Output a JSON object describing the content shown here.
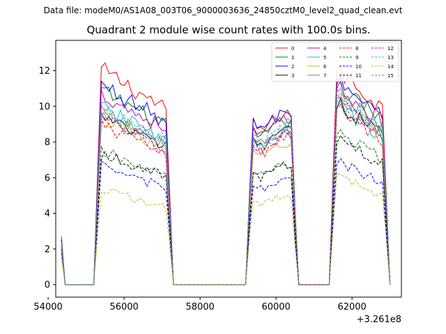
{
  "suptitle": "Data file: modeM0/AS1A08_003T06_9000003636_24850cztM0_level2_quad_clean.evt",
  "chart_data": {
    "type": "line",
    "title": "Quadrant 2 module wise count rates with 100.0s bins.",
    "xlabel": "",
    "ylabel": "",
    "x_offset_label": "+3.261e8",
    "xlim": [
      54200,
      63300
    ],
    "ylim": [
      -0.7,
      13.7
    ],
    "xticks": [
      54000,
      56000,
      58000,
      60000,
      62000
    ],
    "xtick_labels": [
      "54000",
      "56000",
      "58000",
      "60000",
      "62000"
    ],
    "yticks": [
      0,
      2,
      4,
      6,
      8,
      10,
      12
    ],
    "ytick_labels": [
      "0",
      "2",
      "4",
      "6",
      "8",
      "10",
      "12"
    ],
    "legend_position": "top-right",
    "segments": [
      {
        "start": 54350,
        "end": 54450,
        "level": "spike"
      },
      {
        "start": 55300,
        "end": 57200,
        "level": "on"
      },
      {
        "start": 59300,
        "end": 60500,
        "level": "on"
      },
      {
        "start": 61500,
        "end": 62900,
        "level": "on"
      }
    ],
    "series": [
      {
        "name": "0",
        "color": "#ff0000",
        "dash": "solid",
        "spike": 2.7,
        "levels": [
          11.3,
          9.2,
          11.3
        ]
      },
      {
        "name": "1",
        "color": "#008000",
        "dash": "solid",
        "spike": 2.5,
        "levels": [
          10.2,
          8.7,
          10.5
        ]
      },
      {
        "name": "2",
        "color": "#0000ff",
        "dash": "solid",
        "spike": 2.5,
        "levels": [
          10.5,
          9.2,
          10.8
        ]
      },
      {
        "name": "3",
        "color": "#000000",
        "dash": "solid",
        "spike": 2.3,
        "levels": [
          8.8,
          8.2,
          9.6
        ]
      },
      {
        "name": "4",
        "color": "#bf00bf",
        "dash": "solid",
        "spike": 2.4,
        "levels": [
          10.0,
          8.8,
          10.4
        ]
      },
      {
        "name": "5",
        "color": "#17becf",
        "dash": "solid",
        "spike": 2.4,
        "levels": [
          9.3,
          8.1,
          9.4
        ]
      },
      {
        "name": "6",
        "color": "#bcbd22",
        "dash": "solid",
        "spike": 2.2,
        "levels": [
          8.8,
          7.6,
          9.8
        ]
      },
      {
        "name": "7",
        "color": "#7f7f7f",
        "dash": "solid",
        "spike": 2.3,
        "levels": [
          9.1,
          8.3,
          10.1
        ]
      },
      {
        "name": "8",
        "color": "#ff0000",
        "dash": "dashed",
        "spike": 2.3,
        "levels": [
          8.4,
          7.8,
          9.3
        ]
      },
      {
        "name": "9",
        "color": "#008000",
        "dash": "dashed",
        "spike": 2.0,
        "levels": [
          7.0,
          6.4,
          8.0
        ]
      },
      {
        "name": "10",
        "color": "#0000ff",
        "dash": "dashed",
        "spike": 1.8,
        "levels": [
          6.2,
          5.6,
          6.5
        ]
      },
      {
        "name": "11",
        "color": "#000000",
        "dash": "dashed",
        "spike": 2.0,
        "levels": [
          6.9,
          6.4,
          7.7
        ]
      },
      {
        "name": "12",
        "color": "#bf00bf",
        "dash": "dashed",
        "spike": 2.2,
        "levels": [
          8.8,
          8.0,
          9.6
        ]
      },
      {
        "name": "13",
        "color": "#17becf",
        "dash": "dashed",
        "spike": 2.3,
        "levels": [
          9.2,
          8.6,
          9.9
        ]
      },
      {
        "name": "14",
        "color": "#bcbd22",
        "dash": "dashed",
        "spike": 1.5,
        "levels": [
          5.0,
          4.8,
          5.7
        ]
      },
      {
        "name": "15",
        "color": "#7f7f7f",
        "dash": "dashed",
        "spike": 2.2,
        "levels": [
          9.0,
          8.3,
          9.7
        ]
      }
    ]
  }
}
